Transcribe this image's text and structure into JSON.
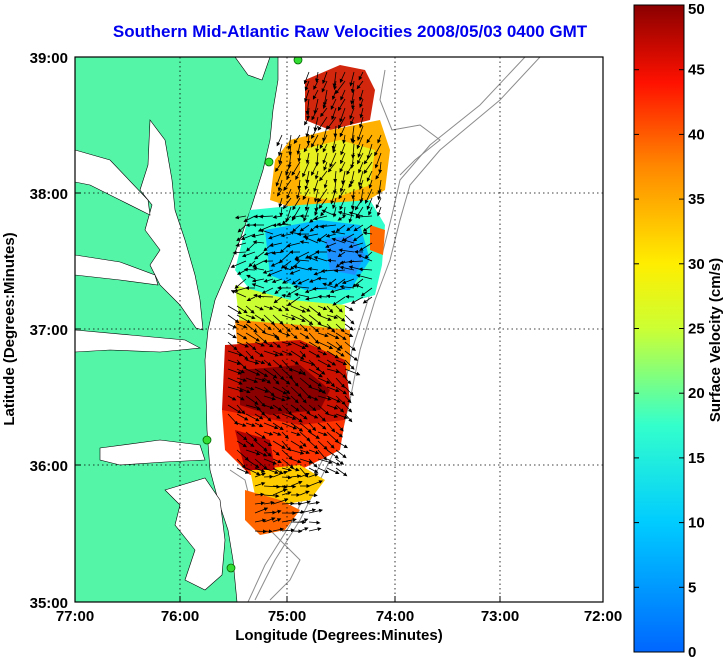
{
  "title": "Southern Mid-Atlantic Raw Velocities 2008/05/03 0400 GMT",
  "xlabel": "Longitude (Degrees:Minutes)",
  "ylabel": "Latitude (Degrees:Minutes)",
  "x_ticks": [
    "77:00",
    "76:00",
    "75:00",
    "74:00",
    "73:00",
    "72:00"
  ],
  "y_ticks": [
    "39:00",
    "38:00",
    "37:00",
    "36:00",
    "35:00"
  ],
  "colorbar": {
    "label": "Surface Velocity (cm/s)",
    "ticks": [
      "0",
      "5",
      "10",
      "15",
      "20",
      "25",
      "30",
      "35",
      "40",
      "45",
      "50"
    ],
    "min": 0,
    "max": 50
  },
  "colors": {
    "land": "#55f5a8",
    "title": "#0000ee",
    "bathymetry": "#8c8c8c"
  },
  "icons": {
    "station": "green-dot"
  }
}
